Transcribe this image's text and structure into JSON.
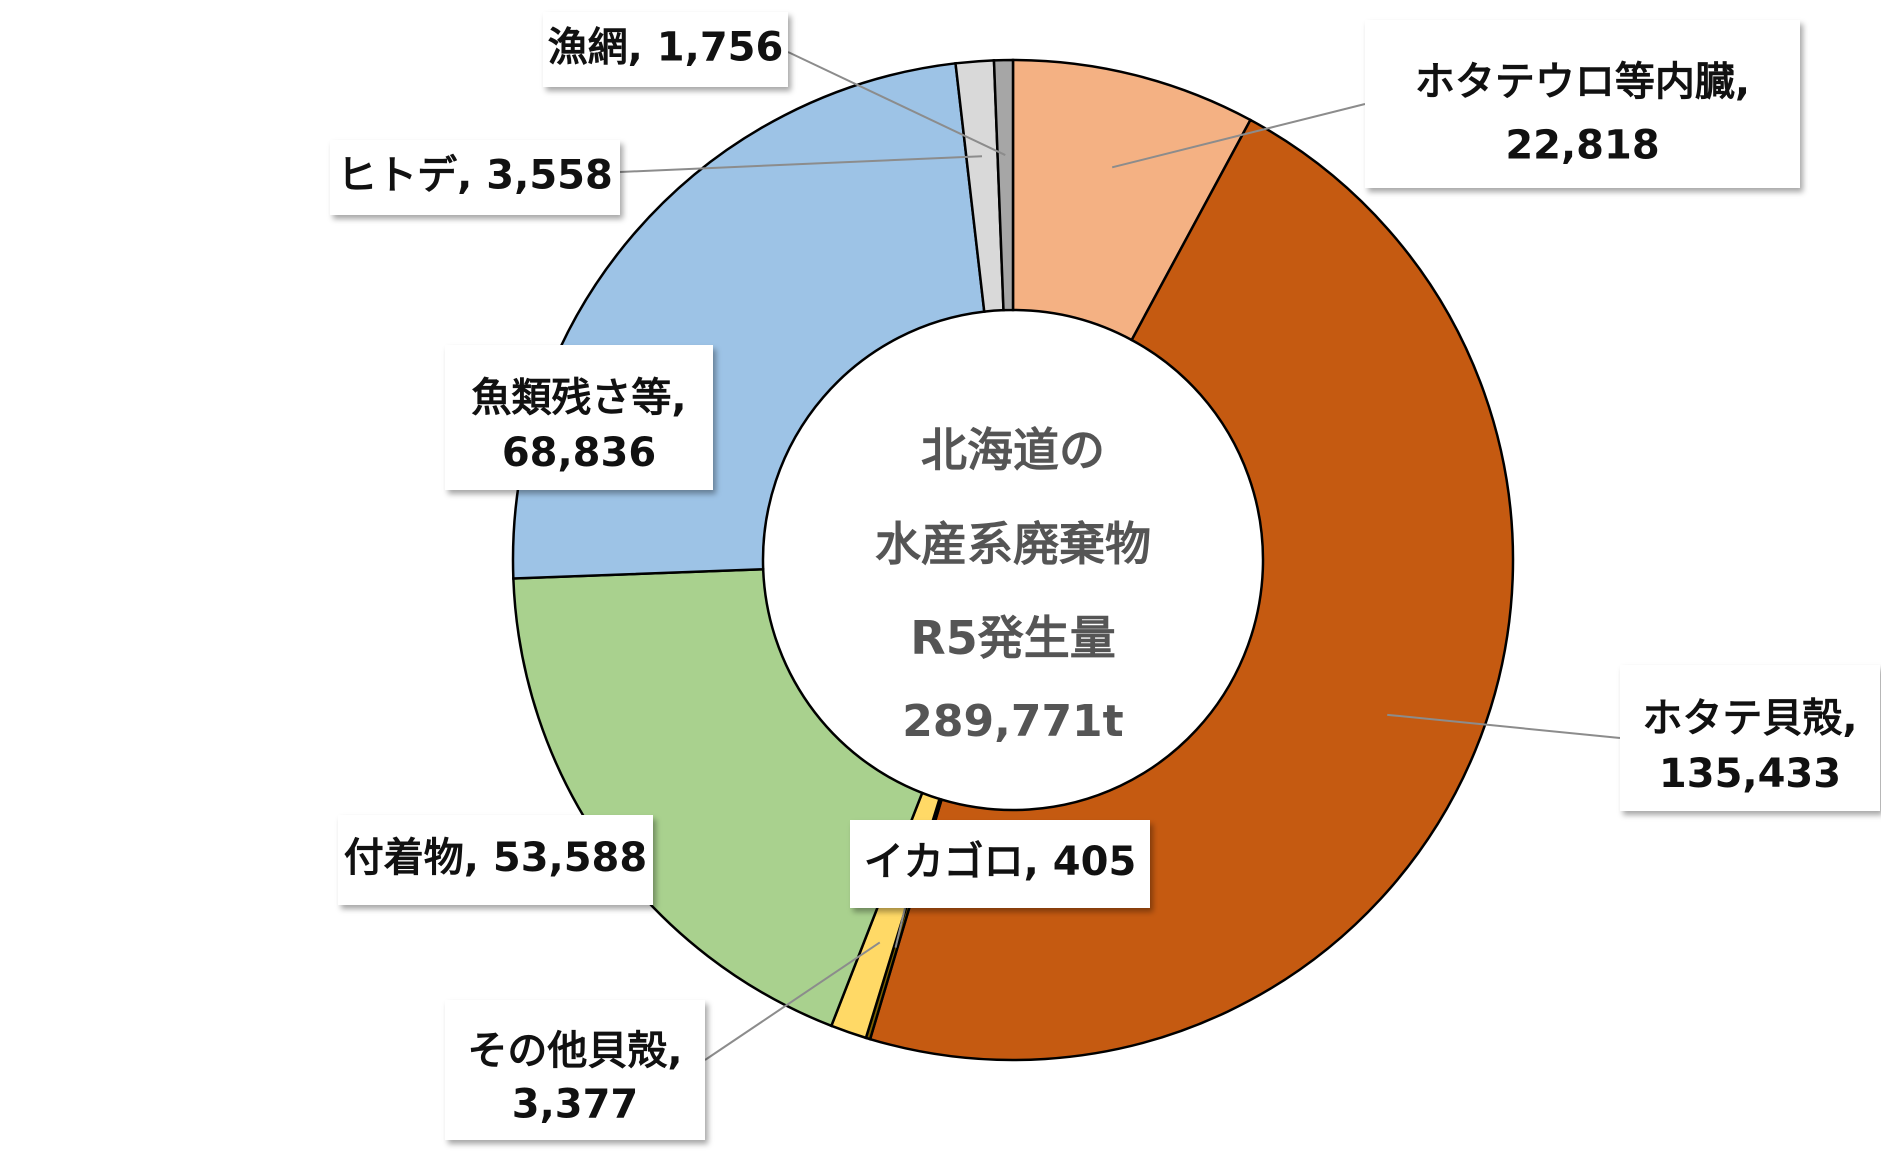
{
  "chart_data": {
    "type": "pie",
    "variant": "donut",
    "center_text": [
      "北海道の",
      "水産系廃棄物",
      "R5発生量",
      "289,771t"
    ],
    "slices": [
      {
        "label": "ホタテウロ等内臓",
        "value": 22818,
        "value_text": "22,818",
        "color": "#F4B183"
      },
      {
        "label": "ホタテ貝殻",
        "value": 135433,
        "value_text": "135,433",
        "color": "#C55A11"
      },
      {
        "label": "イカゴロ",
        "value": 405,
        "value_text": "405",
        "color": "#7F6000"
      },
      {
        "label": "その他貝殻",
        "value": 3377,
        "value_text": "3,377",
        "color": "#FFD966"
      },
      {
        "label": "付着物",
        "value": 53588,
        "value_text": "53,588",
        "color": "#A9D18E"
      },
      {
        "label": "魚類残さ等",
        "value": 68836,
        "value_text": "68,836",
        "color": "#9DC3E6"
      },
      {
        "label": "ヒトデ",
        "value": 3558,
        "value_text": "3,558",
        "color": "#D9D9D9"
      },
      {
        "label": "漁網",
        "value": 1756,
        "value_text": "1,756",
        "color": "#A6A6A6"
      }
    ]
  }
}
